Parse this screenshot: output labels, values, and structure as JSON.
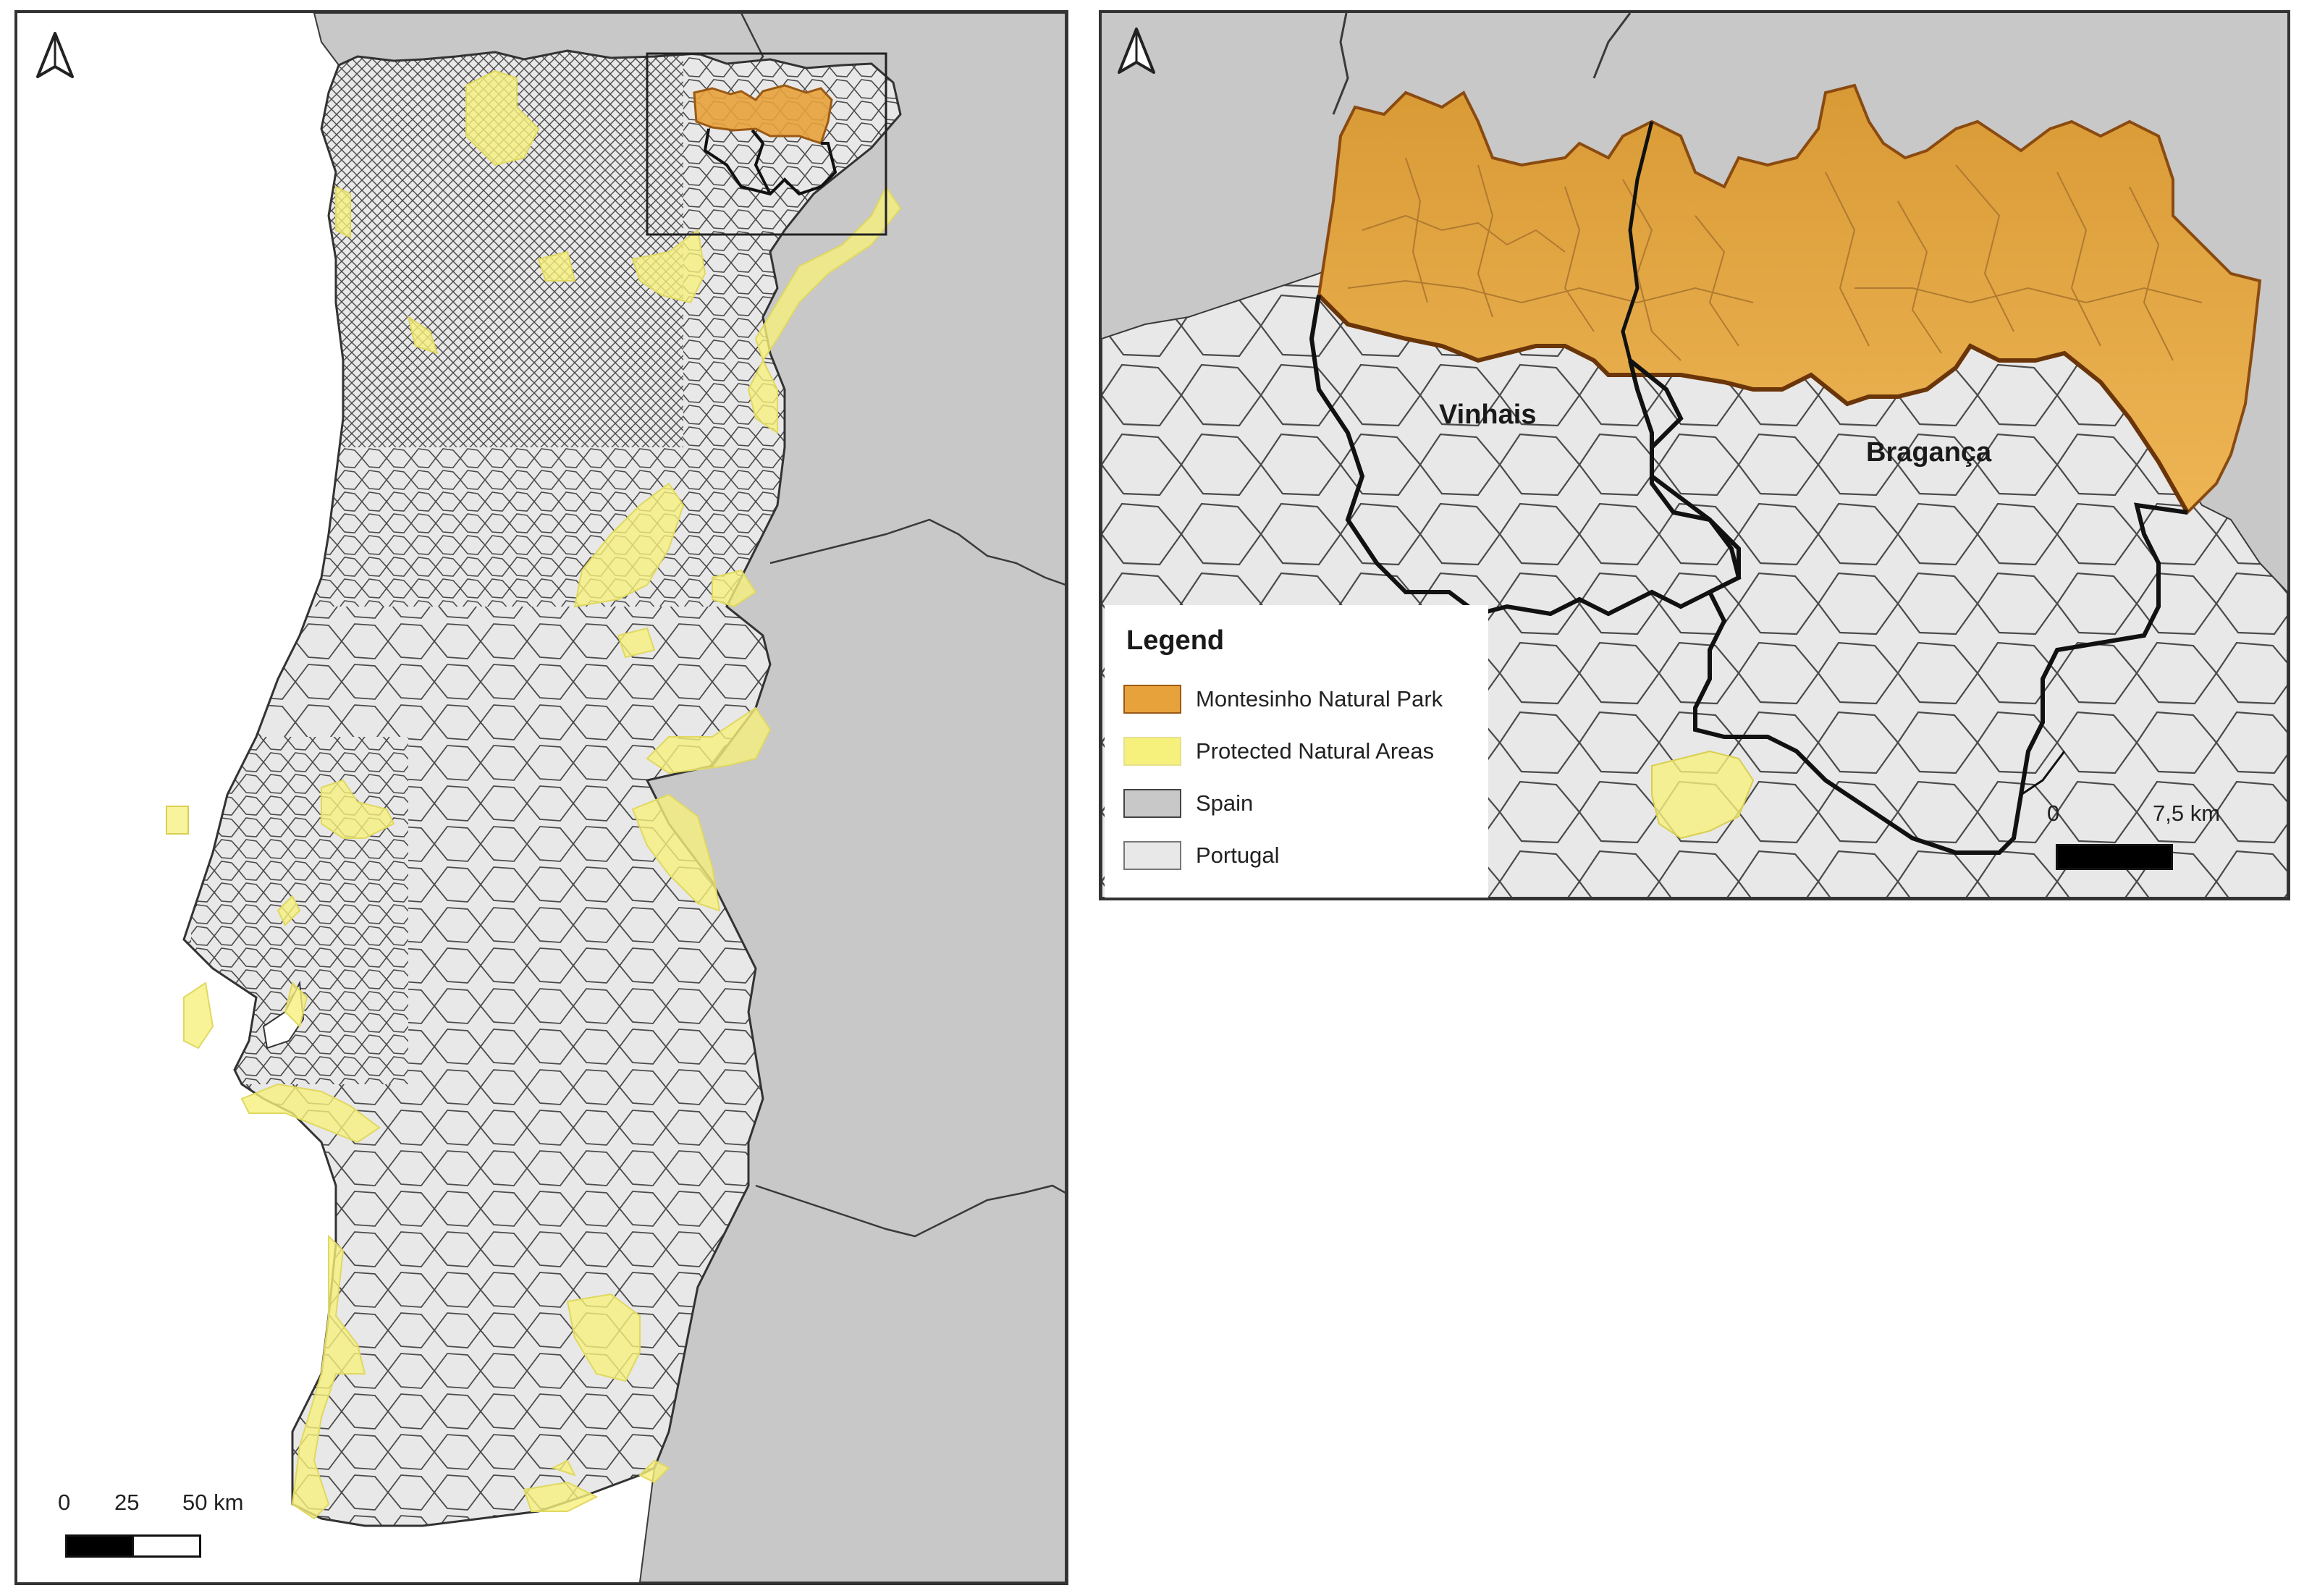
{
  "overview_map": {
    "scale": {
      "tick_0": "0",
      "tick_25": "25",
      "tick_50": "50 km"
    }
  },
  "inset_map": {
    "municipalities": {
      "vinhais": "Vinhais",
      "braganca": "Bragança"
    },
    "scale": {
      "tick_0": "0",
      "tick_end": "7,5 km"
    }
  },
  "legend": {
    "title": "Legend",
    "items": [
      {
        "label": "Montesinho Natural Park",
        "color": "#e8a23c"
      },
      {
        "label": "Protected Natural Areas",
        "color": "#f6f07c"
      },
      {
        "label": "Spain",
        "color": "#c8c8c8"
      },
      {
        "label": "Portugal",
        "color": "#e8e8e8"
      }
    ]
  },
  "icons": [
    "north-arrow-icon",
    "north-arrow-icon"
  ],
  "colors": {
    "spain": "#c8c8c8",
    "portugal": "#e8e8e8",
    "park": "#e8a23c",
    "protected": "#f6f07c",
    "sea": "#ffffff",
    "borders": "#3a3a3a"
  }
}
